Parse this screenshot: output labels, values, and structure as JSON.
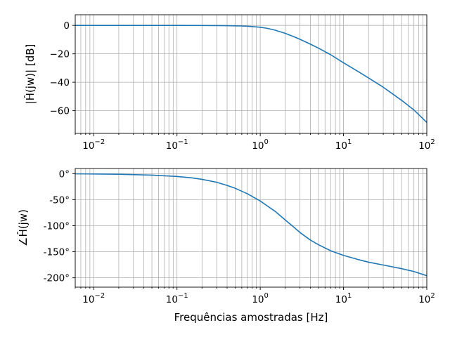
{
  "chart_data": [
    {
      "type": "line",
      "xscale": "log",
      "xlim": [
        0.006,
        100
      ],
      "ylim": [
        -76,
        7.5
      ],
      "grid": true,
      "ylabel": "|Ĥ(jw)| [dB]",
      "xlabel": "",
      "x_ticks": [
        {
          "value": 0.01,
          "base": "10",
          "exp": "−2"
        },
        {
          "value": 0.1,
          "base": "10",
          "exp": "−1"
        },
        {
          "value": 1,
          "base": "10",
          "exp": "0"
        },
        {
          "value": 10,
          "base": "10",
          "exp": "1"
        },
        {
          "value": 100,
          "base": "10",
          "exp": "2"
        }
      ],
      "y_ticks": [
        {
          "value": 0,
          "label": "0"
        },
        {
          "value": -20,
          "label": "−20"
        },
        {
          "value": -40,
          "label": "−40"
        },
        {
          "value": -60,
          "label": "−60"
        }
      ],
      "series": [
        {
          "color": "#1f77b4",
          "points": [
            [
              0.006,
              0
            ],
            [
              0.05,
              0
            ],
            [
              0.1,
              -0.02
            ],
            [
              0.2,
              -0.06
            ],
            [
              0.3,
              -0.12
            ],
            [
              0.4,
              -0.2
            ],
            [
              0.5,
              -0.3
            ],
            [
              0.6,
              -0.4
            ],
            [
              0.7,
              -0.58
            ],
            [
              0.8,
              -0.82
            ],
            [
              1.0,
              -1.3
            ],
            [
              1.2,
              -2.0
            ],
            [
              1.5,
              -3.3
            ],
            [
              2.0,
              -5.6
            ],
            [
              2.5,
              -7.8
            ],
            [
              3.0,
              -9.8
            ],
            [
              4.0,
              -13.2
            ],
            [
              5.0,
              -16.0
            ],
            [
              7.0,
              -20.6
            ],
            [
              10.0,
              -26.3
            ],
            [
              15.0,
              -32.5
            ],
            [
              20.0,
              -37.0
            ],
            [
              30.0,
              -43.5
            ],
            [
              50.0,
              -52.8
            ],
            [
              70.0,
              -59.5
            ],
            [
              100.0,
              -68.3
            ]
          ]
        }
      ]
    },
    {
      "type": "line",
      "xscale": "log",
      "xlim": [
        0.006,
        100
      ],
      "ylim": [
        -218,
        10
      ],
      "grid": true,
      "ylabel": "∠Ĥ(jw)",
      "xlabel": "Frequências amostradas [Hz]",
      "x_ticks": [
        {
          "value": 0.01,
          "base": "10",
          "exp": "−2"
        },
        {
          "value": 0.1,
          "base": "10",
          "exp": "−1"
        },
        {
          "value": 1,
          "base": "10",
          "exp": "0"
        },
        {
          "value": 10,
          "base": "10",
          "exp": "1"
        },
        {
          "value": 100,
          "base": "10",
          "exp": "2"
        }
      ],
      "y_ticks": [
        {
          "value": 0,
          "label": "0°"
        },
        {
          "value": -50,
          "label": "-50°"
        },
        {
          "value": -100,
          "label": "-100°"
        },
        {
          "value": -150,
          "label": "-150°"
        },
        {
          "value": -200,
          "label": "-200°"
        }
      ],
      "series": [
        {
          "color": "#1f77b4",
          "points": [
            [
              0.006,
              -0.3
            ],
            [
              0.01,
              -0.5
            ],
            [
              0.02,
              -1.0
            ],
            [
              0.05,
              -2.7
            ],
            [
              0.1,
              -5.3
            ],
            [
              0.15,
              -8.0
            ],
            [
              0.2,
              -10.8
            ],
            [
              0.3,
              -16.5
            ],
            [
              0.4,
              -22.5
            ],
            [
              0.5,
              -28.0
            ],
            [
              0.7,
              -38.5
            ],
            [
              1.0,
              -52.5
            ],
            [
              1.5,
              -72.0
            ],
            [
              2.0,
              -89.0
            ],
            [
              2.5,
              -102.0
            ],
            [
              3.0,
              -113.0
            ],
            [
              4.0,
              -127.5
            ],
            [
              5.0,
              -136.5
            ],
            [
              7.0,
              -148.0
            ],
            [
              10.0,
              -157.0
            ],
            [
              15.0,
              -165.0
            ],
            [
              20.0,
              -170.0
            ],
            [
              30.0,
              -175.5
            ],
            [
              50.0,
              -182.5
            ],
            [
              70.0,
              -188.0
            ],
            [
              100.0,
              -196.0
            ]
          ]
        }
      ]
    }
  ]
}
